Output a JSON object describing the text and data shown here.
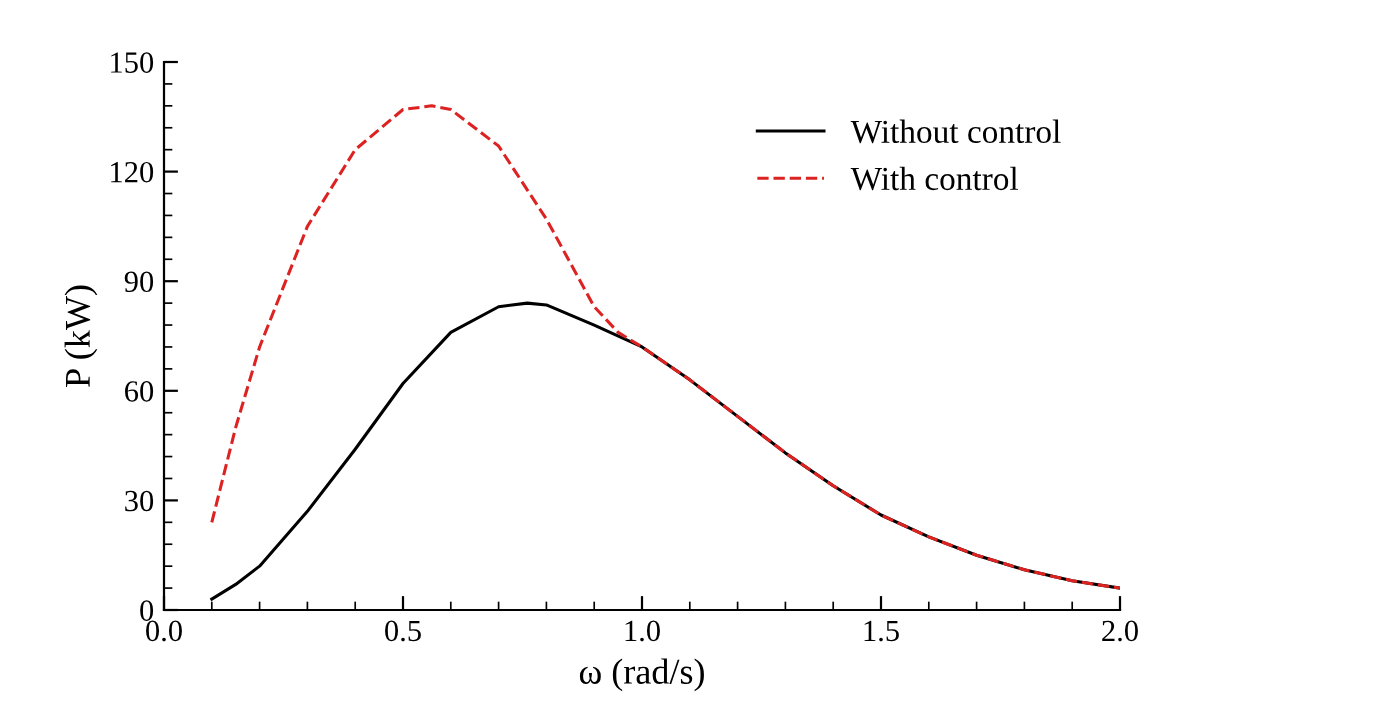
{
  "chart_data": {
    "type": "line",
    "xlabel": "ω (rad/s)",
    "ylabel": "P (kW)",
    "xlim": [
      0,
      2.0
    ],
    "xticks": [
      {
        "value": 0,
        "label": "0.0"
      },
      0.5,
      {
        "value": 1,
        "label": "1.0"
      },
      1.5,
      {
        "value": 2,
        "label": "2.0"
      }
    ],
    "ylim": [
      0,
      150
    ],
    "yticks": [
      0,
      30,
      60,
      90,
      120,
      150
    ],
    "grid": false,
    "legend": "top right",
    "series": [
      {
        "name": "Without control",
        "color": "#000000",
        "line_style": "solid",
        "x": [
          0.1,
          0.15,
          0.2,
          0.3,
          0.4,
          0.5,
          0.6,
          0.7,
          0.76,
          0.8,
          0.9,
          1.0,
          1.1,
          1.2,
          1.3,
          1.4,
          1.5,
          1.6,
          1.7,
          1.8,
          1.9,
          2.0
        ],
        "values": [
          3,
          7,
          12,
          27,
          44,
          62,
          76,
          83,
          84,
          83.5,
          78,
          72,
          63,
          53,
          43,
          34,
          26,
          20,
          15,
          11,
          8,
          6
        ]
      },
      {
        "name": "With control",
        "color": "#dd2222",
        "line_style": "dashed",
        "x": [
          0.1,
          0.15,
          0.2,
          0.3,
          0.4,
          0.5,
          0.56,
          0.6,
          0.7,
          0.8,
          0.9,
          0.95,
          1.0,
          1.1,
          1.2,
          1.3,
          1.4,
          1.5,
          1.6,
          1.7,
          1.8,
          1.9,
          2.0
        ],
        "values": [
          24,
          50,
          72,
          105,
          126,
          137,
          138,
          137,
          127,
          107,
          83,
          76,
          72,
          63,
          53,
          43,
          34,
          26,
          20,
          15,
          11,
          8,
          6
        ]
      }
    ]
  }
}
